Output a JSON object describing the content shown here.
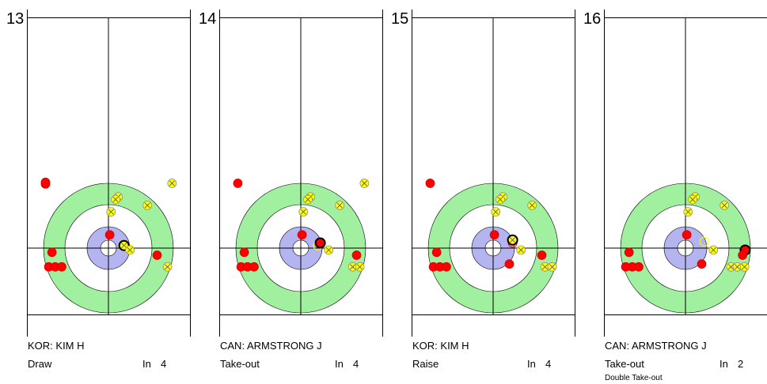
{
  "colors": {
    "red_stone": "#ff0000",
    "yellow_stone": "#ffff00",
    "house_outer": "#a0f0a0",
    "house_inner": "#b4b4f0",
    "line": "#000000"
  },
  "panels": [
    {
      "shot_number": "13",
      "player": "KOR: KIM H",
      "shot_type": "Draw",
      "rotation_label": "In",
      "rotation_value": "4",
      "comment": "",
      "stones": [
        {
          "team": "red",
          "sx": -0.97,
          "sy": 0.99
        },
        {
          "team": "red",
          "sx": -0.97,
          "sy": 1.015
        },
        {
          "team": "yellow",
          "sx": 0.98,
          "sy": 1.0
        },
        {
          "team": "yellow",
          "sx": 0.15,
          "sy": 0.79
        },
        {
          "team": "yellow",
          "sx": 0.11,
          "sy": 0.75
        },
        {
          "team": "yellow",
          "sx": 0.6,
          "sy": 0.66
        },
        {
          "team": "yellow",
          "sx": 0.04,
          "sy": 0.56
        },
        {
          "team": "red",
          "sx": 0.02,
          "sy": 0.205
        },
        {
          "team": "yellow",
          "sx": 0.24,
          "sy": 0.04,
          "hl": true
        },
        {
          "team": "yellow",
          "sx": 0.33,
          "sy": -0.03
        },
        {
          "team": "red",
          "sx": -0.87,
          "sy": -0.065
        },
        {
          "team": "red",
          "sx": 0.75,
          "sy": -0.11
        },
        {
          "team": "red",
          "sx": -0.92,
          "sy": -0.29
        },
        {
          "team": "red",
          "sx": -0.82,
          "sy": -0.29
        },
        {
          "team": "red",
          "sx": -0.72,
          "sy": -0.29
        },
        {
          "team": "yellow",
          "sx": 0.91,
          "sy": -0.29
        }
      ],
      "ghosts": [
        {
          "team": "yellow",
          "sx": 0.31,
          "sy": 0.0
        }
      ]
    },
    {
      "shot_number": "14",
      "player": "CAN: ARMSTRONG J",
      "shot_type": "Take-out",
      "rotation_label": "In",
      "rotation_value": "4",
      "comment": "",
      "stones": [
        {
          "team": "red",
          "sx": -0.97,
          "sy": 1.0
        },
        {
          "team": "yellow",
          "sx": 0.98,
          "sy": 1.0
        },
        {
          "team": "yellow",
          "sx": 0.15,
          "sy": 0.79
        },
        {
          "team": "yellow",
          "sx": 0.11,
          "sy": 0.75
        },
        {
          "team": "yellow",
          "sx": 0.6,
          "sy": 0.66
        },
        {
          "team": "yellow",
          "sx": 0.04,
          "sy": 0.56
        },
        {
          "team": "red",
          "sx": 0.02,
          "sy": 0.205
        },
        {
          "team": "red",
          "sx": 0.3,
          "sy": 0.08,
          "hl": true
        },
        {
          "team": "yellow",
          "sx": 0.43,
          "sy": -0.03
        },
        {
          "team": "red",
          "sx": -0.87,
          "sy": -0.065
        },
        {
          "team": "red",
          "sx": 0.86,
          "sy": -0.11
        },
        {
          "team": "red",
          "sx": -0.92,
          "sy": -0.29
        },
        {
          "team": "red",
          "sx": -0.82,
          "sy": -0.29
        },
        {
          "team": "red",
          "sx": -0.72,
          "sy": -0.29
        },
        {
          "team": "yellow",
          "sx": 0.8,
          "sy": -0.29
        },
        {
          "team": "yellow",
          "sx": 0.91,
          "sy": -0.29
        }
      ],
      "ghosts": [
        {
          "team": "yellow",
          "sx": 0.26,
          "sy": 0.04
        }
      ]
    },
    {
      "shot_number": "15",
      "player": "KOR: KIM H",
      "shot_type": "Raise",
      "rotation_label": "In",
      "rotation_value": "4",
      "comment": "",
      "stones": [
        {
          "team": "red",
          "sx": -0.97,
          "sy": 1.0
        },
        {
          "team": "yellow",
          "sx": 0.15,
          "sy": 0.79
        },
        {
          "team": "yellow",
          "sx": 0.11,
          "sy": 0.75
        },
        {
          "team": "yellow",
          "sx": 0.6,
          "sy": 0.66
        },
        {
          "team": "yellow",
          "sx": 0.04,
          "sy": 0.56
        },
        {
          "team": "red",
          "sx": 0.02,
          "sy": 0.205
        },
        {
          "team": "yellow",
          "sx": 0.3,
          "sy": 0.125,
          "hl": true
        },
        {
          "team": "yellow",
          "sx": 0.43,
          "sy": -0.03
        },
        {
          "team": "red",
          "sx": -0.87,
          "sy": -0.065
        },
        {
          "team": "red",
          "sx": 0.75,
          "sy": -0.11
        },
        {
          "team": "red",
          "sx": 0.25,
          "sy": -0.245
        },
        {
          "team": "red",
          "sx": -0.92,
          "sy": -0.29
        },
        {
          "team": "red",
          "sx": -0.82,
          "sy": -0.29
        },
        {
          "team": "red",
          "sx": -0.72,
          "sy": -0.29
        },
        {
          "team": "yellow",
          "sx": 0.8,
          "sy": -0.29
        },
        {
          "team": "yellow",
          "sx": 0.91,
          "sy": -0.29
        }
      ],
      "ghosts": [
        {
          "team": "red",
          "sx": 0.3,
          "sy": 0.08
        }
      ]
    },
    {
      "shot_number": "16",
      "player": "CAN: ARMSTRONG J",
      "shot_type": "Take-out",
      "rotation_label": "In",
      "rotation_value": "2",
      "comment": "Double Take-out",
      "stones": [
        {
          "team": "yellow",
          "sx": 0.15,
          "sy": 0.79
        },
        {
          "team": "yellow",
          "sx": 0.11,
          "sy": 0.75
        },
        {
          "team": "yellow",
          "sx": 0.6,
          "sy": 0.66
        },
        {
          "team": "yellow",
          "sx": 0.04,
          "sy": 0.56
        },
        {
          "team": "red",
          "sx": 0.02,
          "sy": 0.205
        },
        {
          "team": "yellow",
          "sx": 0.43,
          "sy": -0.03
        },
        {
          "team": "red",
          "sx": 0.92,
          "sy": -0.03,
          "hl": true
        },
        {
          "team": "red",
          "sx": -0.87,
          "sy": -0.065
        },
        {
          "team": "red",
          "sx": 0.88,
          "sy": -0.11
        },
        {
          "team": "red",
          "sx": 0.25,
          "sy": -0.245
        },
        {
          "team": "red",
          "sx": -0.92,
          "sy": -0.29
        },
        {
          "team": "red",
          "sx": -0.82,
          "sy": -0.29
        },
        {
          "team": "red",
          "sx": -0.72,
          "sy": -0.29
        },
        {
          "team": "yellow",
          "sx": 0.7,
          "sy": -0.29
        },
        {
          "team": "yellow",
          "sx": 0.8,
          "sy": -0.29
        },
        {
          "team": "yellow",
          "sx": 0.91,
          "sy": -0.29
        }
      ],
      "ghosts": [
        {
          "team": "yellow",
          "sx": 0.29,
          "sy": 0.1
        }
      ]
    }
  ]
}
